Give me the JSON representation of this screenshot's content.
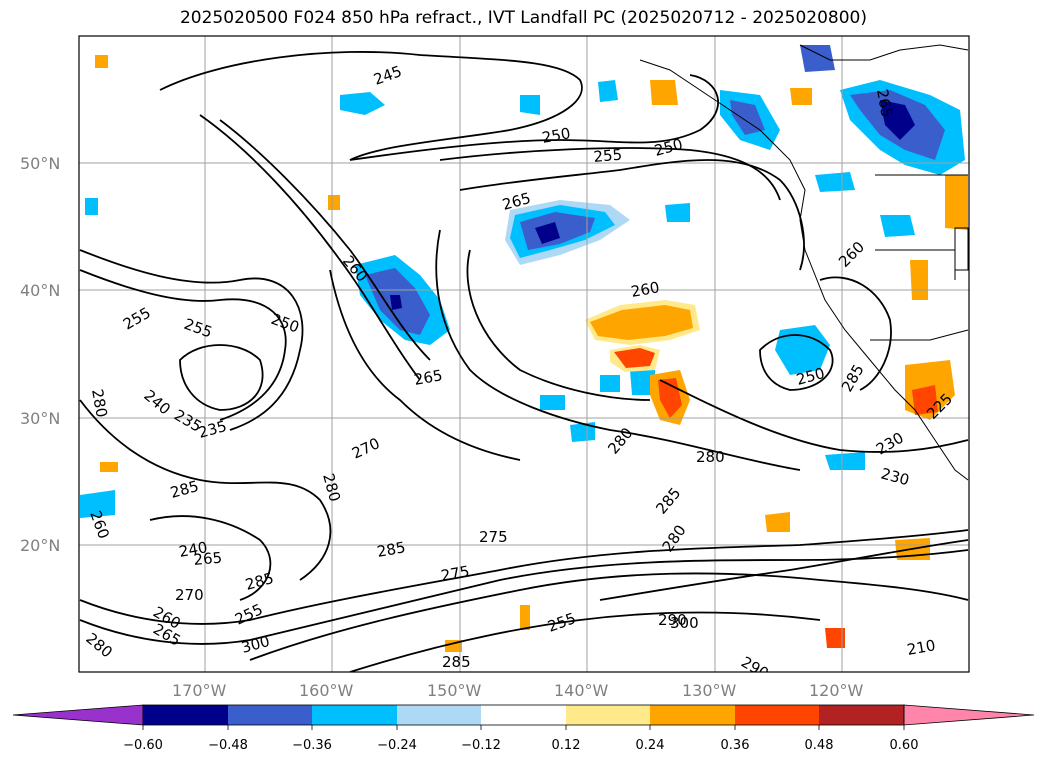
{
  "title": "2025020500 F024 850 hPa refract., IVT Landfall PC (2025020712 - 2025020800)",
  "lat_labels": [
    "50°N",
    "40°N",
    "30°N",
    "20°N"
  ],
  "lon_labels": [
    "170°W",
    "160°W",
    "150°W",
    "140°W",
    "130°W",
    "120°W"
  ],
  "contour_labels": [
    "245",
    "250",
    "255",
    "250",
    "265",
    "260",
    "265",
    "260",
    "270",
    "280",
    "280",
    "275",
    "275",
    "285",
    "280",
    "290",
    "285",
    "255",
    "300",
    "290",
    "285",
    "280",
    "260",
    "250",
    "230",
    "240",
    "235",
    "280",
    "285",
    "265",
    "260",
    "255",
    "255",
    "300",
    "285",
    "265",
    "235",
    "260",
    "250",
    "255",
    "225",
    "230",
    "285",
    "210",
    "240",
    "270",
    "280",
    "265"
  ],
  "colorbar": {
    "ticks": [
      "−0.60",
      "−0.48",
      "−0.36",
      "−0.24",
      "−0.12",
      "0.12",
      "0.24",
      "0.36",
      "0.48",
      "0.60"
    ],
    "colors": [
      "#9932cc",
      "#00008b",
      "#3a5fcd",
      "#00bfff",
      "#add8f6",
      "#ffffff",
      "#ffe98a",
      "#ffa500",
      "#ff4500",
      "#b22222",
      "#ff85aa"
    ]
  }
}
